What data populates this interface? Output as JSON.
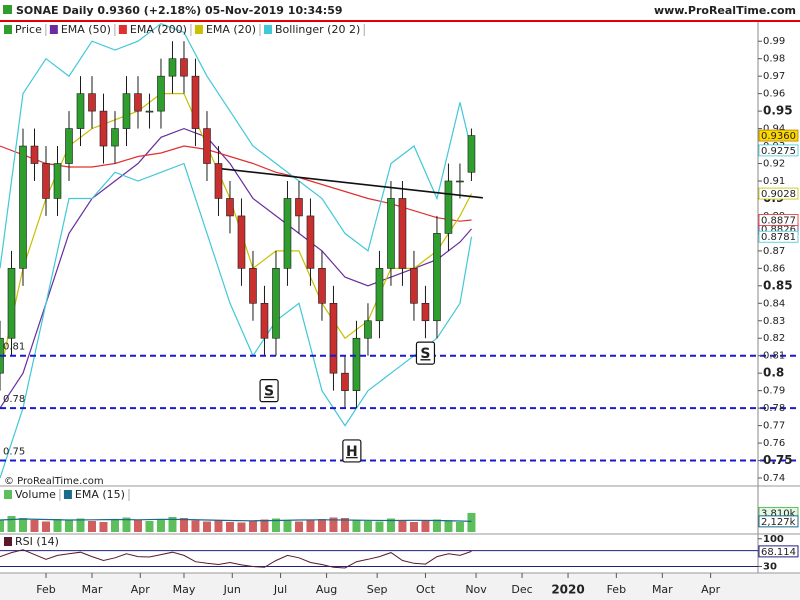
{
  "chart_data": {
    "type": "candlestick",
    "title": "SONAE Daily 0.9360 (+2.18%) 05-Nov-2019 10:34:59",
    "source": "www.ProRealTime.com",
    "copyright": "© ProRealTime.com",
    "xlim": [
      0,
      329.6
    ],
    "ylim": [
      0.736,
      1.001
    ],
    "yticks": [
      0.74,
      0.75,
      0.76,
      0.77,
      0.78,
      0.79,
      0.8,
      0.81,
      0.82,
      0.83,
      0.84,
      0.85,
      0.86,
      0.87,
      0.88,
      0.89,
      0.9,
      0.91,
      0.92,
      0.93,
      0.94,
      0.95,
      0.96,
      0.97,
      0.98,
      0.99
    ],
    "major_yticks": [
      0.75,
      0.8,
      0.85,
      0.9,
      0.95
    ],
    "xticks": [
      {
        "value": 20,
        "label": "Feb"
      },
      {
        "value": 40,
        "label": "Mar"
      },
      {
        "value": 61,
        "label": "Apr"
      },
      {
        "value": 80,
        "label": "May"
      },
      {
        "value": 101,
        "label": "Jun"
      },
      {
        "value": 122,
        "label": "Jul"
      },
      {
        "value": 142,
        "label": "Aug"
      },
      {
        "value": 164,
        "label": "Sep"
      },
      {
        "value": 185,
        "label": "Oct"
      },
      {
        "value": 207,
        "label": "Nov"
      },
      {
        "value": 227,
        "label": "Dec"
      },
      {
        "value": 247,
        "label": "2020",
        "bold": true
      },
      {
        "value": 268,
        "label": "Feb"
      },
      {
        "value": 288,
        "label": "Mar"
      },
      {
        "value": 309,
        "label": "Apr"
      }
    ],
    "price": {
      "name": "Price",
      "up_color": "#2f9e2f",
      "down_color": "#c83030",
      "x": [
        0,
        5,
        10,
        15,
        20,
        25,
        30,
        35,
        40,
        45,
        50,
        55,
        60,
        65,
        70,
        75,
        80,
        85,
        90,
        95,
        100,
        105,
        110,
        115,
        120,
        125,
        130,
        135,
        140,
        145,
        150,
        155,
        160,
        165,
        170,
        175,
        180,
        185,
        190,
        195,
        200,
        205
      ],
      "open": [
        0.8,
        0.82,
        0.86,
        0.93,
        0.92,
        0.9,
        0.92,
        0.94,
        0.96,
        0.95,
        0.93,
        0.94,
        0.96,
        0.95,
        0.95,
        0.97,
        0.98,
        0.97,
        0.94,
        0.92,
        0.9,
        0.89,
        0.86,
        0.84,
        0.82,
        0.86,
        0.9,
        0.89,
        0.86,
        0.84,
        0.8,
        0.79,
        0.82,
        0.83,
        0.86,
        0.9,
        0.86,
        0.84,
        0.83,
        0.88,
        0.91,
        0.915
      ],
      "high": [
        0.83,
        0.87,
        0.94,
        0.94,
        0.93,
        0.93,
        0.95,
        0.97,
        0.97,
        0.96,
        0.95,
        0.97,
        0.97,
        0.96,
        0.98,
        0.99,
        0.99,
        0.98,
        0.95,
        0.93,
        0.91,
        0.9,
        0.87,
        0.85,
        0.87,
        0.91,
        0.91,
        0.9,
        0.87,
        0.85,
        0.81,
        0.83,
        0.84,
        0.87,
        0.91,
        0.91,
        0.87,
        0.85,
        0.89,
        0.92,
        0.92,
        0.94
      ],
      "low": [
        0.79,
        0.81,
        0.85,
        0.91,
        0.89,
        0.89,
        0.91,
        0.93,
        0.94,
        0.92,
        0.92,
        0.93,
        0.94,
        0.94,
        0.94,
        0.96,
        0.96,
        0.93,
        0.91,
        0.89,
        0.88,
        0.85,
        0.83,
        0.81,
        0.81,
        0.85,
        0.88,
        0.85,
        0.83,
        0.79,
        0.78,
        0.78,
        0.81,
        0.82,
        0.85,
        0.85,
        0.83,
        0.82,
        0.82,
        0.87,
        0.9,
        0.91
      ],
      "close": [
        0.82,
        0.86,
        0.93,
        0.92,
        0.9,
        0.92,
        0.94,
        0.96,
        0.95,
        0.93,
        0.94,
        0.96,
        0.95,
        0.95,
        0.97,
        0.98,
        0.97,
        0.94,
        0.92,
        0.9,
        0.89,
        0.86,
        0.84,
        0.82,
        0.86,
        0.9,
        0.89,
        0.86,
        0.84,
        0.8,
        0.79,
        0.82,
        0.83,
        0.86,
        0.9,
        0.86,
        0.84,
        0.83,
        0.88,
        0.91,
        0.91,
        0.936
      ],
      "value_labels": [
        null,
        null,
        null,
        null,
        null,
        null,
        null,
        null,
        null,
        null,
        null,
        null,
        null,
        null,
        null,
        null,
        null,
        null,
        null,
        null,
        null,
        null,
        null,
        null,
        null,
        null,
        null,
        null,
        null,
        null,
        null,
        null,
        null,
        null,
        null,
        null,
        null,
        null,
        null,
        null,
        null,
        "0.9360"
      ]
    },
    "x_ind": [
      0,
      10,
      20,
      30,
      40,
      50,
      60,
      70,
      80,
      90,
      100,
      110,
      120,
      130,
      140,
      150,
      160,
      170,
      180,
      190,
      200,
      205
    ],
    "series": [
      {
        "name": "EMA (50)",
        "color": "#6a2ca0",
        "values": [
          0.78,
          0.8,
          0.84,
          0.88,
          0.9,
          0.91,
          0.92,
          0.935,
          0.94,
          0.935,
          0.92,
          0.9,
          0.89,
          0.88,
          0.87,
          0.855,
          0.85,
          0.855,
          0.86,
          0.865,
          0.875,
          0.8826
        ]
      },
      {
        "name": "EMA (200)",
        "color": "#e03030",
        "values": [
          0.93,
          0.925,
          0.92,
          0.918,
          0.918,
          0.92,
          0.924,
          0.926,
          0.93,
          0.928,
          0.924,
          0.92,
          0.915,
          0.912,
          0.908,
          0.904,
          0.9,
          0.897,
          0.893,
          0.889,
          0.887,
          0.8877
        ]
      },
      {
        "name": "EMA (20)",
        "color": "#c8c000",
        "values": [
          0.8,
          0.86,
          0.9,
          0.93,
          0.94,
          0.945,
          0.95,
          0.96,
          0.96,
          0.93,
          0.9,
          0.86,
          0.87,
          0.87,
          0.84,
          0.82,
          0.83,
          0.86,
          0.86,
          0.87,
          0.89,
          0.9028
        ]
      },
      {
        "name": "Bollinger (20 2)",
        "color": "#40c8d8",
        "upper": [
          0.86,
          0.96,
          0.98,
          0.97,
          0.99,
          0.985,
          0.99,
          1.0,
          0.995,
          0.97,
          0.95,
          0.93,
          0.92,
          0.91,
          0.9,
          0.88,
          0.87,
          0.92,
          0.93,
          0.9,
          0.955,
          0.9275
        ],
        "lower": [
          0.74,
          0.78,
          0.84,
          0.9,
          0.9,
          0.915,
          0.91,
          0.915,
          0.92,
          0.88,
          0.84,
          0.81,
          0.83,
          0.84,
          0.79,
          0.77,
          0.79,
          0.8,
          0.81,
          0.82,
          0.84,
          0.8781
        ]
      }
    ],
    "levels": [
      0.81,
      0.78,
      0.75
    ],
    "level_color": "#1a1acc",
    "neckline": {
      "x": [
        96.5,
        210
      ],
      "values": [
        0.917,
        0.9004
      ]
    },
    "annotations": [
      {
        "text": "S",
        "x": 117,
        "y": 0.79
      },
      {
        "text": "H",
        "x": 153,
        "y": 0.7555
      },
      {
        "text": "S",
        "x": 185,
        "y": 0.8115
      }
    ],
    "volume": {
      "name": "Volume",
      "ylim": [
        0,
        6000
      ],
      "values": [
        2500,
        3200,
        2800,
        2400,
        2100,
        2600,
        2300,
        2700,
        2200,
        2000,
        2500,
        2900,
        2400,
        2200,
        2600,
        3000,
        2800,
        2300,
        2100,
        2400,
        2000,
        1900,
        2200,
        2500,
        2700,
        2300,
        2100,
        2400,
        2600,
        2900,
        2800,
        2300,
        2200,
        2100,
        2700,
        2400,
        2000,
        2200,
        2500,
        2300,
        2000,
        3810
      ],
      "value_labels": [
        null,
        null,
        null,
        null,
        null,
        null,
        null,
        null,
        null,
        null,
        null,
        null,
        null,
        null,
        null,
        null,
        null,
        null,
        null,
        null,
        null,
        null,
        null,
        null,
        null,
        null,
        null,
        null,
        null,
        null,
        null,
        null,
        null,
        null,
        null,
        null,
        null,
        null,
        null,
        null,
        null,
        "3.810k"
      ],
      "ema": {
        "name": "EMA (15)",
        "color": "#1a6a8a",
        "values": [
          2400,
          2600,
          2500,
          2400,
          2450,
          2500,
          2450,
          2550,
          2500,
          2400,
          2300,
          2250,
          2300,
          2400,
          2450,
          2400,
          2350,
          2300,
          2350,
          2300,
          2200,
          2127
        ],
        "value_labels": [
          null,
          null,
          null,
          null,
          null,
          null,
          null,
          null,
          null,
          null,
          null,
          null,
          null,
          null,
          null,
          null,
          null,
          null,
          null,
          null,
          null,
          "2,127k"
        ]
      }
    },
    "rsi": {
      "name": "RSI (14)",
      "color": "#5a1a2a",
      "ylim": [
        16,
        107
      ],
      "yticks": [
        30,
        100
      ],
      "levels": [
        30,
        70
      ],
      "values": [
        55,
        65,
        72,
        60,
        48,
        58,
        62,
        66,
        55,
        45,
        52,
        62,
        55,
        54,
        60,
        66,
        58,
        42,
        38,
        35,
        40,
        34,
        30,
        28,
        45,
        58,
        52,
        40,
        35,
        28,
        26,
        42,
        48,
        55,
        65,
        45,
        38,
        36,
        55,
        62,
        58,
        68.114
      ]
    }
  }
}
